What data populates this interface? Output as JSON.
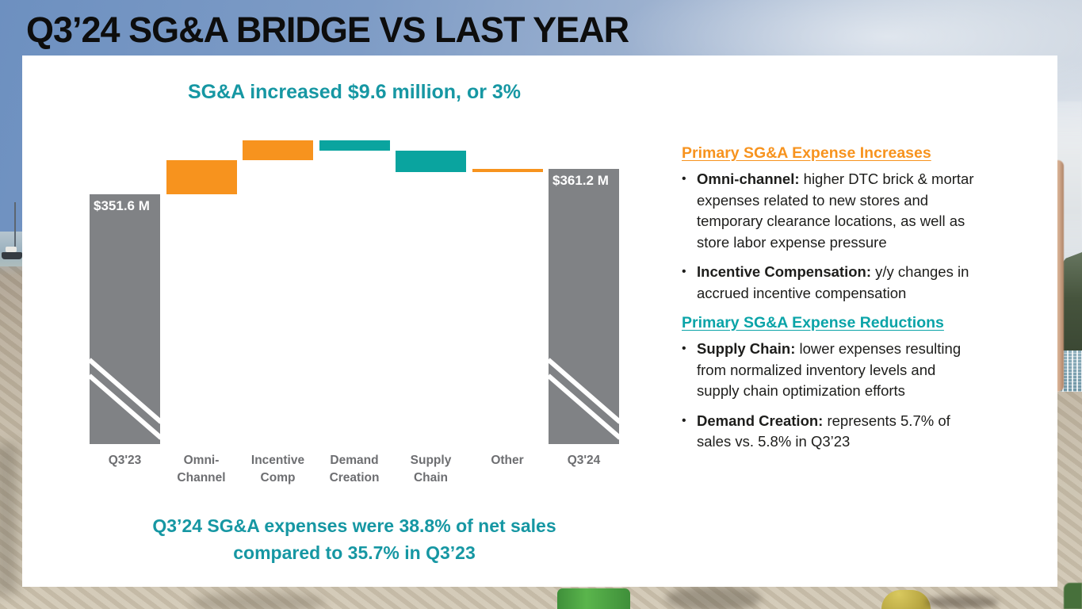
{
  "slide": {
    "title": "Q3’24 SG&A BRIDGE VS LAST YEAR"
  },
  "chart": {
    "headline": "SG&A increased $9.6 million, or 3%",
    "caption": "Q3’24 SG&A expenses were 38.8% of net sales\ncompared to 35.7% in Q3’23"
  },
  "chart_data": {
    "type": "waterfall",
    "title": "SG&A increased $9.6 million, or 3%",
    "unit": "USD millions",
    "categories": [
      "Q3'23",
      "Omni-\nChannel",
      "Incentive\nComp",
      "Demand\nCreation",
      "Supply\nChain",
      "Other",
      "Q3'24"
    ],
    "bars": [
      {
        "label": "Q3'23",
        "type": "total",
        "value": 351.6,
        "data_label": "$351.6 M",
        "axis_break": true
      },
      {
        "label": "Omni-Channel",
        "type": "delta",
        "value": 13.0,
        "estimated": true
      },
      {
        "label": "Incentive Comp",
        "type": "delta",
        "value": 7.5,
        "estimated": true
      },
      {
        "label": "Demand Creation",
        "type": "delta",
        "value": -4.0,
        "estimated": true
      },
      {
        "label": "Supply Chain",
        "type": "delta",
        "value": -8.0,
        "estimated": true
      },
      {
        "label": "Other",
        "type": "delta",
        "value": 1.1,
        "estimated": true
      },
      {
        "label": "Q3'24",
        "type": "total",
        "value": 361.2,
        "data_label": "$361.2 M",
        "axis_break": true
      }
    ],
    "colors": {
      "increase": "#F7931E",
      "decrease": "#0AA49F",
      "total": "#808285"
    },
    "axis_break": true,
    "legend": false,
    "grid": false
  },
  "notes": {
    "sections": [
      {
        "heading": "Primary SG&A Expense Increases",
        "color": "#F7931E",
        "bullets": [
          {
            "lead": "Omni-channel:",
            "text": " higher DTC brick & mortar\nexpenses related to new stores and\ntemporary clearance locations, as well as\nstore labor expense pressure"
          },
          {
            "lead": "Incentive Compensation:",
            "text": " y/y changes in\naccrued incentive compensation"
          }
        ]
      },
      {
        "heading": "Primary SG&A Expense Reductions",
        "color": "#0AA4A8",
        "bullets": [
          {
            "lead": "Supply Chain:",
            "text": " lower expenses resulting\nfrom normalized inventory levels and\nsupply chain optimization efforts"
          },
          {
            "lead": "Demand Creation:",
            "text": " represents 5.7% of\nsales vs. 5.8% in Q3’23"
          }
        ]
      }
    ]
  },
  "colors": {
    "accent_orange": "#F7931E",
    "accent_teal_text": "#1697A3",
    "bar_teal": "#0AA49F",
    "bar_gray": "#808285",
    "category_label_gray": "#6D6E71",
    "body_text": "#1D1D1B",
    "panel": "#FFFFFF"
  }
}
